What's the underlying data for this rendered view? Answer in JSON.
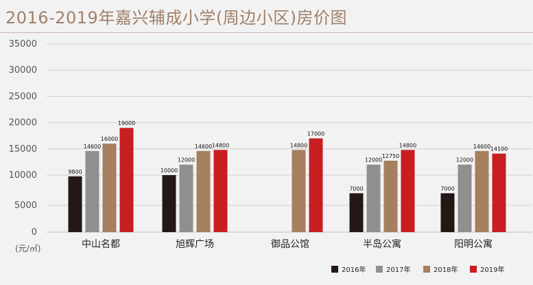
{
  "chart_data": {
    "type": "bar",
    "title": "2016-2019年嘉兴辅成小学(周边小区)房价图",
    "ylabel": "(元/㎡)",
    "ylim": [
      0,
      35000
    ],
    "yticks": [
      0,
      5000,
      10000,
      15000,
      20000,
      25000,
      30000,
      35000
    ],
    "grid": true,
    "legend_position": "bottom-right",
    "categories": [
      "中山名都",
      "旭辉广场",
      "御品公馆",
      "半岛公寓",
      "阳明公寓"
    ],
    "series": [
      {
        "name": "2016年",
        "color": "#231815",
        "values": [
          9800,
          10000,
          null,
          7000,
          7000
        ]
      },
      {
        "name": "2017年",
        "color": "#8f8f8f",
        "values": [
          14600,
          12000,
          null,
          12000,
          12000
        ]
      },
      {
        "name": "2018年",
        "color": "#a67f5f",
        "values": [
          16000,
          14600,
          14800,
          12750,
          14600
        ]
      },
      {
        "name": "2019年",
        "color": "#c81e22",
        "values": [
          19000,
          14800,
          17000,
          14800,
          14100
        ]
      }
    ]
  }
}
